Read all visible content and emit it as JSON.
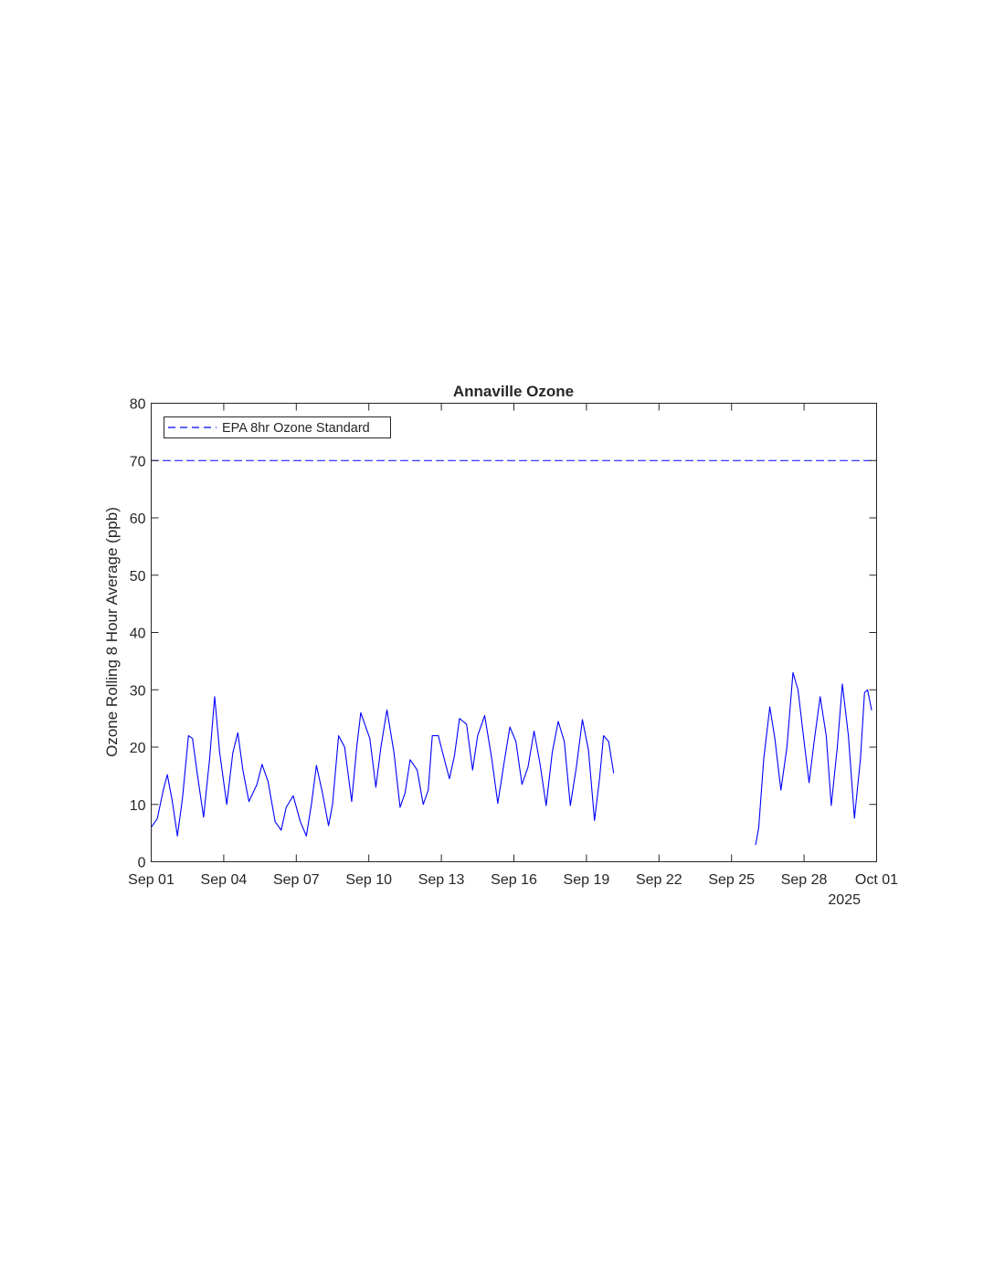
{
  "chart_data": {
    "type": "line",
    "title": "Annaville Ozone",
    "xlabel": "",
    "ylabel": "Ozone Rolling 8 Hour Average (ppb)",
    "x_start": "2025-09-01",
    "x_end": "2025-10-01",
    "xlim": [
      "2025-09-01",
      "2025-10-01"
    ],
    "ylim": [
      0,
      80
    ],
    "x_ticks": [
      {
        "x": "2025-09-01",
        "label": "Sep 01"
      },
      {
        "x": "2025-09-04",
        "label": "Sep 04"
      },
      {
        "x": "2025-09-07",
        "label": "Sep 07"
      },
      {
        "x": "2025-09-10",
        "label": "Sep 10"
      },
      {
        "x": "2025-09-13",
        "label": "Sep 13"
      },
      {
        "x": "2025-09-16",
        "label": "Sep 16"
      },
      {
        "x": "2025-09-19",
        "label": "Sep 19"
      },
      {
        "x": "2025-09-22",
        "label": "Sep 22"
      },
      {
        "x": "2025-09-25",
        "label": "Sep 25"
      },
      {
        "x": "2025-09-28",
        "label": "Sep 28"
      },
      {
        "x": "2025-10-01",
        "label": "Oct 01"
      }
    ],
    "x_secondary_label": "2025",
    "y_ticks": [
      0,
      10,
      20,
      30,
      40,
      50,
      60,
      70,
      80
    ],
    "grid": false,
    "legend": {
      "placement": "top-left",
      "entries": [
        "EPA 8hr Ozone Standard"
      ]
    },
    "series": [
      {
        "name": "",
        "style": "solid",
        "color": "#0000ff",
        "x": [
          "2025-09-01 00:00",
          "2025-09-01 06:00",
          "2025-09-01 12:00",
          "2025-09-01 16:00",
          "2025-09-01 21:00",
          "2025-09-02 02:00",
          "2025-09-02 07:00",
          "2025-09-02 13:00",
          "2025-09-02 17:00",
          "2025-09-02 22:00",
          "2025-09-03 04:00",
          "2025-09-03 10:00",
          "2025-09-03 15:00",
          "2025-09-03 20:00",
          "2025-09-04 03:00",
          "2025-09-04 09:00",
          "2025-09-04 14:00",
          "2025-09-04 19:00",
          "2025-09-05 01:00",
          "2025-09-05 09:00",
          "2025-09-05 14:00",
          "2025-09-05 20:00",
          "2025-09-06 03:00",
          "2025-09-06 09:00",
          "2025-09-06 14:00",
          "2025-09-06 21:00",
          "2025-09-07 04:00",
          "2025-09-07 10:00",
          "2025-09-07 15:00",
          "2025-09-07 20:00",
          "2025-09-08 02:00",
          "2025-09-08 08:00",
          "2025-09-08 12:00",
          "2025-09-08 18:00",
          "2025-09-09 00:00",
          "2025-09-09 07:00",
          "2025-09-09 12:00",
          "2025-09-09 16:00",
          "2025-09-10 01:00",
          "2025-09-10 07:00",
          "2025-09-10 12:00",
          "2025-09-10 18:00",
          "2025-09-11 01:00",
          "2025-09-11 07:00",
          "2025-09-11 12:00",
          "2025-09-11 17:00",
          "2025-09-12 00:00",
          "2025-09-12 06:00",
          "2025-09-12 11:00",
          "2025-09-12 15:00",
          "2025-09-12 21:00",
          "2025-09-13 02:00",
          "2025-09-13 08:00",
          "2025-09-13 13:00",
          "2025-09-13 18:00",
          "2025-09-14 01:00",
          "2025-09-14 07:00",
          "2025-09-14 12:00",
          "2025-09-14 19:00",
          "2025-09-15 02:00",
          "2025-09-15 08:00",
          "2025-09-15 14:00",
          "2025-09-15 20:00",
          "2025-09-16 02:00",
          "2025-09-16 08:00",
          "2025-09-16 14:00",
          "2025-09-16 20:00",
          "2025-09-17 02:00",
          "2025-09-17 08:00",
          "2025-09-17 14:00",
          "2025-09-17 20:00",
          "2025-09-18 02:00",
          "2025-09-18 08:00",
          "2025-09-18 14:00",
          "2025-09-18 20:00",
          "2025-09-19 02:00",
          "2025-09-19 08:00",
          "2025-09-19 13:00",
          "2025-09-19 17:00",
          "2025-09-19 22:00",
          "2025-09-20 03:00",
          "2025-09-20 08:00",
          "2025-09-20 13:00"
        ],
        "y": [
          6.0,
          7.5,
          12.5,
          15.2,
          10.5,
          4.5,
          11.0,
          22.0,
          21.5,
          15.0,
          7.8,
          18.0,
          28.8,
          19.0,
          10.0,
          19.0,
          22.5,
          16.0,
          10.5,
          13.5,
          17.0,
          14.0,
          7.0,
          5.5,
          9.5,
          11.5,
          7.0,
          4.5,
          10.0,
          16.8,
          12.0,
          6.3,
          10.0,
          22.0,
          20.0,
          10.5,
          20.0,
          26.0,
          21.5,
          13.0,
          20.0,
          26.5,
          19.0,
          9.5,
          12.0,
          17.8,
          16.0,
          10.0,
          12.5,
          22.0,
          22.0,
          18.5,
          14.5,
          18.5,
          25.0,
          24.0,
          16.0,
          22.0,
          25.5,
          18.0,
          10.2,
          17.0,
          23.5,
          21.0,
          13.5,
          16.5,
          22.8,
          17.0,
          9.8,
          19.0,
          24.5,
          21.0,
          9.8,
          16.5,
          24.8,
          19.5,
          7.2,
          14.5,
          22.0,
          21.0,
          15.5,
          null,
          null
        ]
      },
      {
        "name": "",
        "style": "solid",
        "color": "#0000ff",
        "x": [
          "2025-09-26 00:00",
          "2025-09-26 03:00",
          "2025-09-26 08:00",
          "2025-09-26 14:00",
          "2025-09-26 19:00",
          "2025-09-27 01:00",
          "2025-09-27 07:00",
          "2025-09-27 13:00",
          "2025-09-27 18:00",
          "2025-09-28 00:00",
          "2025-09-28 05:00",
          "2025-09-28 10:00",
          "2025-09-28 16:00",
          "2025-09-28 22:00",
          "2025-09-29 03:00",
          "2025-09-29 09:00",
          "2025-09-29 14:00",
          "2025-09-29 20:00",
          "2025-09-30 02:00",
          "2025-09-30 08:00",
          "2025-09-30 12:00",
          "2025-09-30 15:00",
          "2025-09-30 19:00"
        ],
        "y": [
          3.0,
          6.0,
          18.0,
          27.0,
          21.5,
          12.5,
          20.0,
          33.0,
          30.0,
          21.0,
          13.8,
          21.0,
          28.8,
          22.0,
          9.8,
          20.0,
          31.0,
          22.0,
          7.6,
          18.0,
          29.5,
          30.0,
          26.5
        ]
      },
      {
        "name": "EPA 8hr Ozone Standard",
        "style": "dashed",
        "color": "#0000ff",
        "x": [
          "2025-09-01 00:00",
          "2025-10-01 00:00"
        ],
        "y": [
          70,
          70
        ]
      }
    ]
  }
}
